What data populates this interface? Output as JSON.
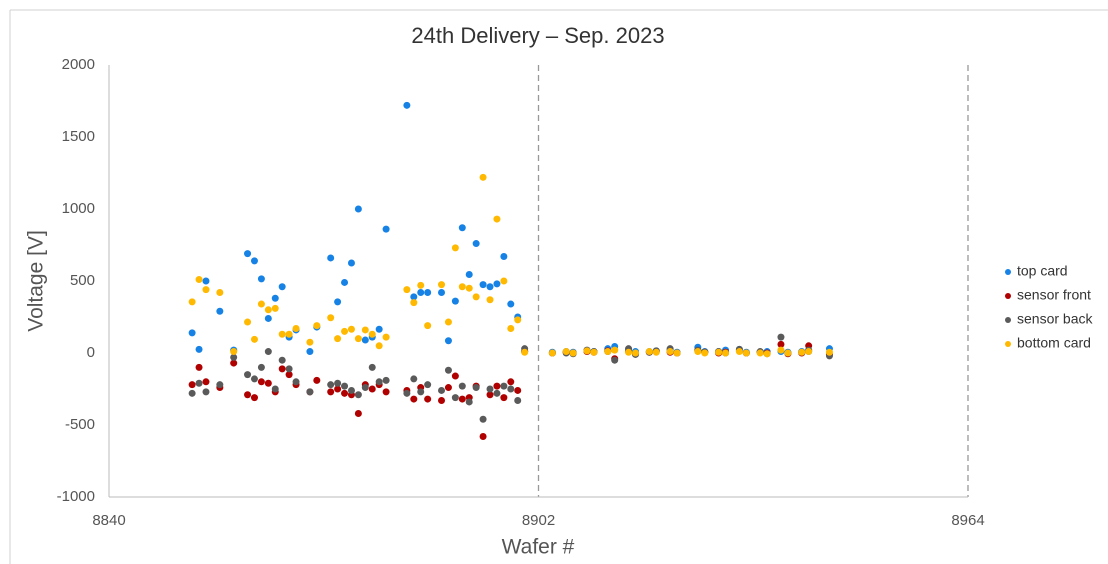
{
  "chart_data": {
    "type": "scatter",
    "title": "24th Delivery – Sep. 2023",
    "xlabel": "Wafer #",
    "ylabel": "Voltage [V]",
    "xlim": [
      8840,
      8964
    ],
    "xticks": [
      8840,
      8902,
      8964
    ],
    "ylim": [
      -1000,
      2000
    ],
    "yticks": [
      -1000,
      -500,
      0,
      500,
      1000,
      1500,
      2000
    ],
    "xgrid": true,
    "legend": "right",
    "x": [
      8852,
      8853,
      8854,
      8856,
      8858,
      8860,
      8861,
      8862,
      8863,
      8864,
      8865,
      8866,
      8867,
      8869,
      8870,
      8872,
      8873,
      8874,
      8875,
      8876,
      8877,
      8878,
      8879,
      8880,
      8883,
      8884,
      8885,
      8886,
      8888,
      8889,
      8890,
      8891,
      8892,
      8893,
      8894,
      8895,
      8896,
      8897,
      8898,
      8899,
      8900,
      8904,
      8906,
      8907,
      8909,
      8910,
      8912,
      8913,
      8915,
      8916,
      8918,
      8919,
      8921,
      8922,
      8925,
      8926,
      8928,
      8929,
      8931,
      8932,
      8934,
      8935,
      8937,
      8938,
      8940,
      8941,
      8944
    ],
    "series": [
      {
        "name": "top card",
        "color": "#1682e6",
        "values": [
          140,
          25,
          500,
          290,
          20,
          690,
          640,
          515,
          240,
          380,
          460,
          110,
          160,
          10,
          180,
          660,
          355,
          490,
          625,
          1000,
          90,
          110,
          165,
          860,
          1720,
          390,
          420,
          420,
          420,
          85,
          360,
          870,
          545,
          760,
          475,
          460,
          480,
          670,
          340,
          250,
          10,
          5,
          10,
          5,
          15,
          10,
          30,
          45,
          20,
          10,
          10,
          15,
          20,
          5,
          40,
          10,
          10,
          20,
          25,
          5,
          5,
          10,
          10,
          5,
          10,
          10,
          30
        ]
      },
      {
        "name": "sensor front",
        "color": "#b00000",
        "values": [
          -220,
          -100,
          -200,
          -240,
          -70,
          -290,
          -310,
          -200,
          -210,
          -270,
          -110,
          -150,
          -220,
          -270,
          -190,
          -270,
          -250,
          -280,
          -290,
          -420,
          -220,
          -250,
          -220,
          -270,
          -260,
          -320,
          -240,
          -320,
          -330,
          -240,
          -160,
          -320,
          -310,
          -230,
          -580,
          -290,
          -230,
          -310,
          -200,
          -260,
          10,
          0,
          5,
          0,
          10,
          5,
          15,
          -40,
          10,
          -5,
          5,
          10,
          5,
          0,
          15,
          5,
          0,
          5,
          15,
          0,
          5,
          0,
          60,
          -5,
          0,
          50,
          -10
        ]
      },
      {
        "name": "sensor back",
        "color": "#5a5a5a",
        "values": [
          -280,
          -210,
          -270,
          -220,
          -30,
          -150,
          -180,
          -100,
          10,
          -250,
          -50,
          -110,
          -200,
          -270,
          null,
          -220,
          -210,
          -230,
          -260,
          -290,
          -240,
          -100,
          -200,
          -190,
          -280,
          -180,
          -270,
          -220,
          -260,
          -120,
          -310,
          -230,
          -340,
          -240,
          -460,
          -250,
          -280,
          -230,
          -250,
          -330,
          30,
          0,
          0,
          -5,
          20,
          10,
          10,
          -50,
          30,
          -10,
          5,
          15,
          30,
          0,
          20,
          5,
          10,
          0,
          25,
          0,
          10,
          -5,
          110,
          0,
          5,
          20,
          -20
        ]
      },
      {
        "name": "bottom card",
        "color": "#ffb900",
        "values": [
          355,
          510,
          440,
          420,
          10,
          215,
          95,
          340,
          300,
          310,
          130,
          130,
          170,
          75,
          190,
          245,
          100,
          150,
          165,
          100,
          160,
          130,
          50,
          110,
          440,
          350,
          470,
          190,
          475,
          215,
          730,
          460,
          450,
          390,
          1220,
          370,
          930,
          500,
          170,
          230,
          5,
          0,
          10,
          0,
          15,
          5,
          10,
          20,
          5,
          0,
          10,
          5,
          10,
          0,
          10,
          0,
          5,
          0,
          10,
          0,
          0,
          -5,
          20,
          0,
          5,
          10,
          5
        ]
      }
    ]
  }
}
